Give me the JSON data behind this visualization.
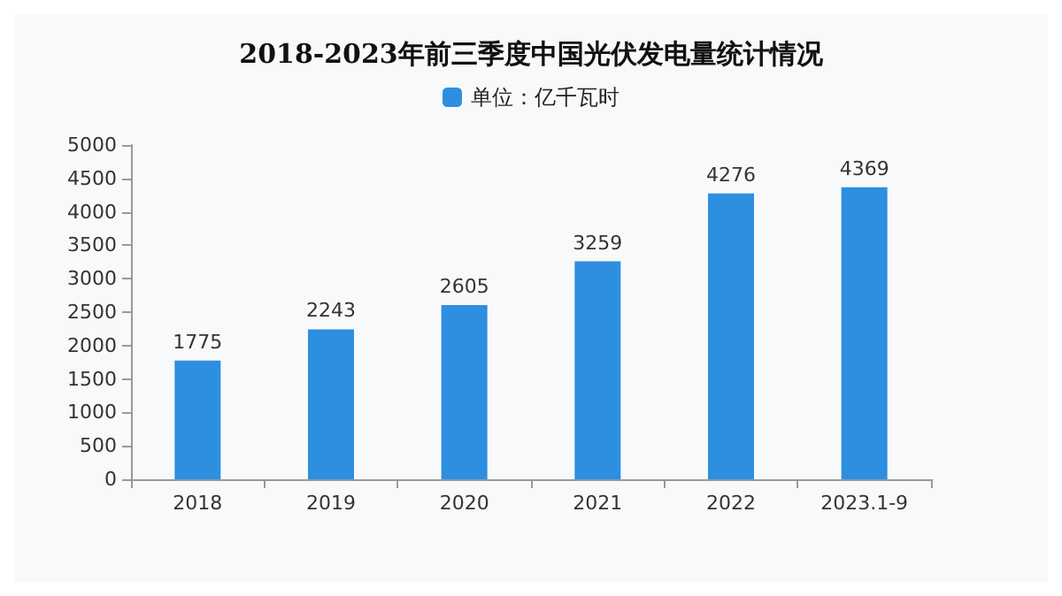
{
  "chart_data": {
    "type": "bar",
    "title": "2018-2023年前三季度中国光伏发电量统计情况",
    "categories": [
      "2018",
      "2019",
      "2020",
      "2021",
      "2022",
      "2023.1-9"
    ],
    "series": [
      {
        "name": "单位：亿千瓦时",
        "color": "#2e8ee0",
        "values": [
          1775,
          2243,
          2605,
          3259,
          4276,
          4369
        ]
      }
    ],
    "ylim": [
      0,
      5000
    ],
    "yticks": [
      0,
      500,
      1000,
      1500,
      2000,
      2500,
      3000,
      3500,
      4000,
      4500,
      5000
    ],
    "grid": false,
    "legend": "top",
    "data_labels": true
  }
}
